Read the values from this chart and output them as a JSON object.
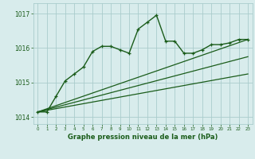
{
  "bg_color": "#d8ecec",
  "grid_color": "#aacccc",
  "line_color": "#1a5c1a",
  "xlim": [
    -0.5,
    23.5
  ],
  "ylim": [
    1013.8,
    1017.3
  ],
  "yticks": [
    1014,
    1015,
    1016,
    1017
  ],
  "xticks": [
    0,
    1,
    2,
    3,
    4,
    5,
    6,
    7,
    8,
    9,
    10,
    11,
    12,
    13,
    14,
    15,
    16,
    17,
    18,
    19,
    20,
    21,
    22,
    23
  ],
  "xticklabels": [
    "0",
    "1",
    "2",
    "3",
    "4",
    "5",
    "6",
    "7",
    "8",
    "9",
    "10",
    "11",
    "12",
    "13",
    "14",
    "15",
    "16",
    "17",
    "18",
    "19",
    "20",
    "21",
    "22",
    "23"
  ],
  "xlabel": "Graphe pression niveau de la mer (hPa)",
  "series": [
    {
      "x": [
        0,
        1,
        2,
        3,
        4,
        5,
        6,
        7,
        8,
        9,
        10,
        11,
        12,
        13,
        14,
        15,
        16,
        17,
        18,
        19,
        20,
        21,
        22,
        23
      ],
      "y": [
        1014.15,
        1014.15,
        1014.6,
        1015.05,
        1015.25,
        1015.45,
        1015.9,
        1016.05,
        1016.05,
        1015.95,
        1015.85,
        1016.55,
        1016.75,
        1016.95,
        1016.2,
        1016.2,
        1015.85,
        1015.85,
        1015.95,
        1016.1,
        1016.1,
        1016.15,
        1016.25,
        1016.25
      ],
      "marker": true,
      "linewidth": 1.0,
      "markersize": 3.5
    },
    {
      "x": [
        0,
        23
      ],
      "y": [
        1014.15,
        1016.25
      ],
      "marker": false,
      "linewidth": 0.9
    },
    {
      "x": [
        0,
        23
      ],
      "y": [
        1014.15,
        1015.75
      ],
      "marker": false,
      "linewidth": 0.9
    },
    {
      "x": [
        0,
        23
      ],
      "y": [
        1014.15,
        1015.25
      ],
      "marker": false,
      "linewidth": 0.9
    }
  ]
}
